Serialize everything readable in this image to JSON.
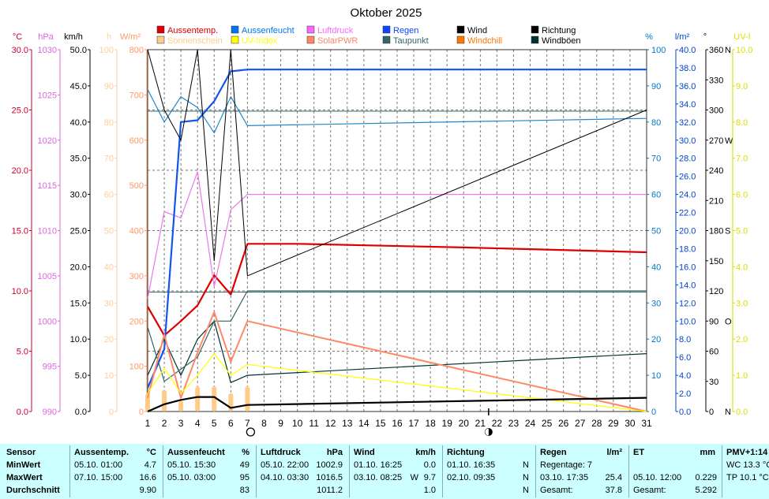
{
  "chart_data": {
    "type": "line",
    "title": "Oktober 2025",
    "x": [
      1,
      2,
      3,
      4,
      5,
      6,
      7,
      8,
      9,
      10,
      11,
      12,
      13,
      14,
      15,
      16,
      17,
      18,
      19,
      20,
      21,
      22,
      23,
      24,
      25,
      26,
      27,
      28,
      29,
      30,
      31
    ],
    "xlim": [
      1,
      31
    ],
    "axes": [
      {
        "label": "°C",
        "min": 0,
        "max": 30,
        "ticks": [
          "0.0",
          "5.0",
          "10.0",
          "15.0",
          "20.0",
          "25.0",
          "30.0"
        ],
        "color": "#cc0033"
      },
      {
        "label": "hPa",
        "min": 990,
        "max": 1030,
        "ticks": [
          "990",
          "995",
          "1000",
          "1005",
          "1010",
          "1015",
          "1020",
          "1025",
          "1030"
        ],
        "color": "#dd66dd"
      },
      {
        "label": "km/h",
        "min": 0,
        "max": 50,
        "ticks": [
          "0.0",
          "5.0",
          "10.0",
          "15.0",
          "20.0",
          "25.0",
          "30.0",
          "35.0",
          "40.0",
          "45.0",
          "50.0"
        ],
        "color": "#000000"
      },
      {
        "label": "h",
        "min": 0,
        "max": 100,
        "ticks": [
          "0",
          "10",
          "20",
          "30",
          "40",
          "50",
          "60",
          "70",
          "80",
          "90",
          "100"
        ],
        "color": "#ffcc99"
      },
      {
        "label": "W/m²",
        "min": 0,
        "max": 800,
        "ticks": [
          "0",
          "100",
          "200",
          "300",
          "400",
          "500",
          "600",
          "700",
          "800"
        ],
        "color": "#ff9966"
      },
      {
        "label": "%",
        "min": 0,
        "max": 100,
        "ticks": [
          "0",
          "10",
          "20",
          "30",
          "40",
          "50",
          "60",
          "70",
          "80",
          "90",
          "100"
        ],
        "color": "#0077cc"
      },
      {
        "label": "l/m²",
        "min": 0,
        "max": 40,
        "ticks": [
          "0.0",
          "2.0",
          "4.0",
          "6.0",
          "8.0",
          "10.0",
          "12.0",
          "14.0",
          "16.0",
          "18.0",
          "20.0",
          "22.0",
          "24.0",
          "26.0",
          "28.0",
          "30.0",
          "32.0",
          "34.0",
          "36.0",
          "38.0",
          "40.0"
        ],
        "color": "#0044cc"
      },
      {
        "label": "°",
        "min": 0,
        "max": 360,
        "ticks": [
          "0",
          "30",
          "60",
          "90",
          "120",
          "150",
          "180",
          "210",
          "240",
          "270",
          "300",
          "330",
          "360"
        ],
        "dir_labels": [
          "N",
          "",
          "",
          "O",
          "",
          "",
          "S",
          "",
          "",
          "W",
          "",
          "",
          "N"
        ],
        "color": "#000000"
      },
      {
        "label": "UV-I",
        "min": 0,
        "max": 10,
        "ticks": [
          "0.0",
          "1.0",
          "2.0",
          "3.0",
          "4.0",
          "5.0",
          "6.0",
          "7.0",
          "8.0",
          "9.0",
          "10.0"
        ],
        "color": "#dddd00"
      }
    ],
    "legend": [
      {
        "name": "Aussentemp.",
        "color": "#dd0000"
      },
      {
        "name": "Aussenfeucht",
        "color": "#0077ee"
      },
      {
        "name": "Luftdruck",
        "color": "#ff66ff"
      },
      {
        "name": "Regen",
        "color": "#1144ff"
      },
      {
        "name": "Wind",
        "color": "#000000"
      },
      {
        "name": "Richtung",
        "color": "#000000"
      },
      {
        "name": "Sonnenschein",
        "color": "#ffcc88"
      },
      {
        "name": "UV-Index",
        "color": "#ffff00"
      },
      {
        "name": "SolarPWR",
        "color": "#ff8866"
      },
      {
        "name": "Taupunkt",
        "color": "#336666"
      },
      {
        "name": "Windchill",
        "color": "#ff7700"
      },
      {
        "name": "Windböen",
        "color": "#003333"
      }
    ],
    "series": [
      {
        "name": "Aussentemp.",
        "axis": 0,
        "color": "#dd0000",
        "width": 2.2,
        "points": [
          [
            1,
            8.7
          ],
          [
            2,
            6.3
          ],
          [
            3,
            7.5
          ],
          [
            4,
            8.8
          ],
          [
            5,
            11.3
          ],
          [
            6,
            9.7
          ],
          [
            7,
            13.9
          ],
          [
            10,
            13.9
          ],
          [
            20,
            13.6
          ],
          [
            31,
            13.2
          ]
        ]
      },
      {
        "name": "Aussenfeucht",
        "axis": 5,
        "color": "#2288cc",
        "width": 1.2,
        "points": [
          [
            1,
            89
          ],
          [
            2,
            80
          ],
          [
            3,
            87
          ],
          [
            4,
            84
          ],
          [
            5,
            77
          ],
          [
            6,
            87
          ],
          [
            7,
            79
          ],
          [
            31,
            81
          ]
        ]
      },
      {
        "name": "Luftdruck",
        "axis": 1,
        "color": "#ee77ee",
        "width": 1.2,
        "points": [
          [
            1,
            1002.5
          ],
          [
            2,
            1012.1
          ],
          [
            3,
            1011.4
          ],
          [
            4,
            1016.5
          ],
          [
            5,
            1003.8
          ],
          [
            6,
            1012.3
          ],
          [
            7,
            1014.0
          ],
          [
            31,
            1014.0
          ]
        ]
      },
      {
        "name": "Regen",
        "axis": 6,
        "color": "#1155ee",
        "width": 2.2,
        "points": [
          [
            1,
            2.6
          ],
          [
            2,
            6.9
          ],
          [
            3,
            32.0
          ],
          [
            4,
            32.2
          ],
          [
            5,
            34.3
          ],
          [
            6,
            37.6
          ],
          [
            7,
            37.8
          ],
          [
            31,
            37.8
          ]
        ]
      },
      {
        "name": "Windböen",
        "axis": 2,
        "color": "#003333",
        "width": 1.2,
        "points": [
          [
            1,
            5.0
          ],
          [
            2,
            10.0
          ],
          [
            3,
            5.0
          ],
          [
            4,
            10.0
          ],
          [
            5,
            12.5
          ],
          [
            6,
            4.0
          ],
          [
            7,
            5.0
          ],
          [
            31,
            8.0
          ]
        ]
      },
      {
        "name": "Taupunkt",
        "axis": 0,
        "color": "#336666",
        "width": 1.2,
        "points": [
          [
            1,
            7.0
          ],
          [
            2,
            2.5
          ],
          [
            3,
            3.5
          ],
          [
            4,
            4.5
          ],
          [
            5,
            7.5
          ],
          [
            6,
            7.5
          ],
          [
            7,
            10.0
          ],
          [
            31,
            10.0
          ]
        ]
      },
      {
        "name": "SolarPWR",
        "axis": 4,
        "color": "#ff8866",
        "width": 2.0,
        "points": [
          [
            1,
            30
          ],
          [
            2,
            170
          ],
          [
            3,
            30
          ],
          [
            4,
            130
          ],
          [
            5,
            220
          ],
          [
            6,
            110
          ],
          [
            7,
            200
          ],
          [
            31,
            0
          ]
        ]
      },
      {
        "name": "UV-Index",
        "axis": 8,
        "color": "#ffff00",
        "width": 1.2,
        "points": [
          [
            1,
            0.5
          ],
          [
            2,
            1.2
          ],
          [
            3,
            0.5
          ],
          [
            4,
            1.0
          ],
          [
            5,
            1.6
          ],
          [
            6,
            1.0
          ],
          [
            7,
            1.3
          ],
          [
            31,
            0
          ]
        ]
      },
      {
        "name": "Richtung",
        "axis": 7,
        "color": "#000000",
        "width": 1.0,
        "points": [
          [
            1,
            360
          ],
          [
            2,
            300
          ],
          [
            3,
            270
          ],
          [
            4,
            360
          ],
          [
            5,
            150
          ],
          [
            6,
            360
          ],
          [
            7,
            135
          ],
          [
            31,
            300
          ]
        ]
      },
      {
        "name": "Wind",
        "axis": 2,
        "color": "#000000",
        "width": 2.2,
        "points": [
          [
            1,
            0
          ],
          [
            2,
            1.0
          ],
          [
            3,
            1.6
          ],
          [
            4,
            2.0
          ],
          [
            5,
            2.0
          ],
          [
            6,
            0.5
          ],
          [
            7,
            0.9
          ],
          [
            31,
            1.9
          ]
        ]
      }
    ],
    "sunshine_bars": {
      "axis": 3,
      "color": "#ffcc88",
      "values": [
        [
          1,
          5
        ],
        [
          2,
          6
        ],
        [
          3,
          3
        ],
        [
          4,
          7
        ],
        [
          5,
          7
        ],
        [
          6,
          5
        ],
        [
          7,
          7
        ]
      ]
    },
    "moon_phases": [
      {
        "day": 7,
        "phase": "full"
      },
      {
        "day": 21.5,
        "phase": "new"
      }
    ],
    "ref_lines": [
      {
        "axis": 5,
        "value": 83,
        "color": "#336666"
      },
      {
        "axis": 5,
        "value": 33,
        "color": "#336666"
      }
    ]
  },
  "stats": {
    "sensor": {
      "header": "Sensor",
      "rows": [
        "MinWert",
        "MaxWert",
        "Durchschnitt"
      ]
    },
    "aussentemp": {
      "header": "Aussentemp.",
      "unit": "°C",
      "min_time": "05.10.  01:00",
      "min_val": "4.7",
      "max_time": "07.10.  15:00",
      "max_val": "16.6",
      "avg": "9.90"
    },
    "aussenfeucht": {
      "header": "Aussenfeucht",
      "unit": "%",
      "min_time": "05.10.  15:30",
      "min_val": "49",
      "max_time": "05.10.  03:00",
      "max_val": "95",
      "avg": "83"
    },
    "luftdruck": {
      "header": "Luftdruck",
      "unit": "hPa",
      "min_time": "05.10.  22:00",
      "min_val": "1002.9",
      "max_time": "04.10.  03:30",
      "max_val": "1016.5",
      "avg": "1011.2"
    },
    "wind": {
      "header": "Wind",
      "unit": "km/h",
      "min_time": "01.10.  16:25",
      "min_val": "0.0",
      "max_time": "03.10.  08:25",
      "max_dir": "W",
      "max_val": "9.7",
      "avg": "1.0"
    },
    "richtung": {
      "header": "Richtung",
      "min_time": "01.10.  16:35",
      "min_val": "N",
      "max_time": "02.10.  09:35",
      "max_val": "N",
      "avg": "N"
    },
    "regen": {
      "header": "Regen",
      "unit": "l/m²",
      "row1": "Regentage: 7",
      "max_time": "03.10.  17:35",
      "max_val": "25.4",
      "total_label": "Gesamt:",
      "total_val": "37.8"
    },
    "et": {
      "header": "ET",
      "unit": "mm",
      "max_time": "05.10.  12:00",
      "max_val": "0.229",
      "total_label": "Gesamt:",
      "total_val": "5.292"
    },
    "pmv": {
      "header": "PMV+1:14",
      "row1": "WC 13.3 °C",
      "row2": "TP 10.1 °C"
    }
  }
}
